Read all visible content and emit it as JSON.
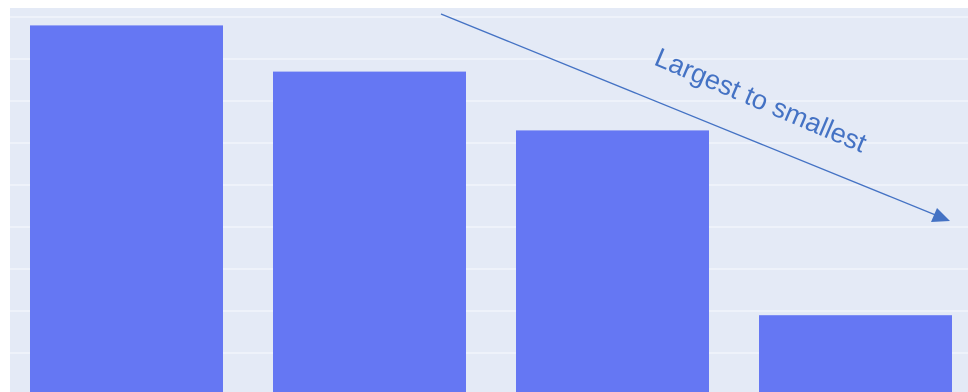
{
  "chart_data": {
    "type": "bar",
    "annotation": "Largest to smallest",
    "categories": [
      null,
      null,
      null,
      null
    ],
    "values": [
      8.8,
      7.7,
      6.3,
      1.9
    ],
    "color": "#6577f3",
    "ylim": [
      0,
      9.2
    ],
    "yticks": [
      1,
      2,
      3,
      4,
      5,
      6,
      7,
      8,
      9
    ],
    "grid": true
  }
}
